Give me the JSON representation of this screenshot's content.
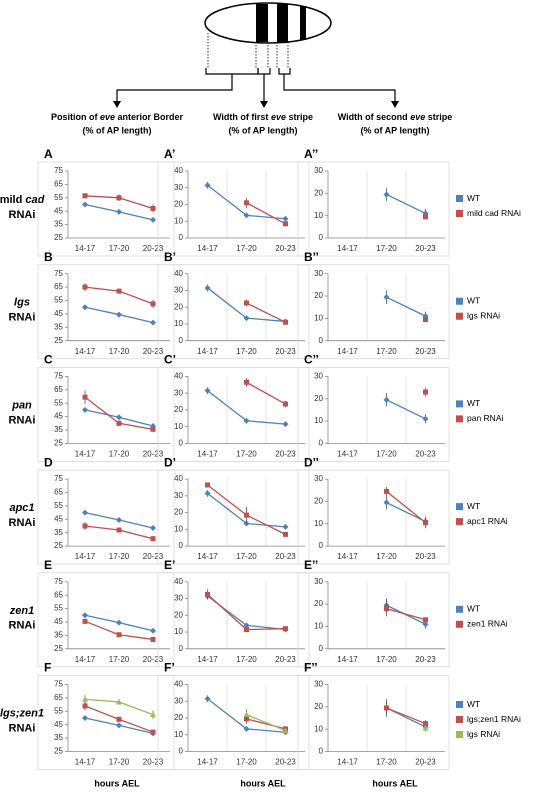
{
  "columns": [
    {
      "title_parts": [
        "Position of ",
        "eve",
        " anterior Border"
      ],
      "sub": "(% of AP length)",
      "x_label": "hours AEL"
    },
    {
      "title_parts": [
        "Width of first ",
        "eve",
        " stripe"
      ],
      "sub": "(% of AP length)",
      "x_label": "hours AEL"
    },
    {
      "title_parts": [
        "Width of second ",
        "eve",
        " stripe"
      ],
      "sub": "(% of AP length)",
      "x_label": "hours AEL"
    }
  ],
  "rows": [
    {
      "label_parts": [
        "mild ",
        "cad"
      ],
      "rnai": "RNAi",
      "legend": [
        {
          "name": "WT",
          "color": "#4f81bd"
        },
        {
          "name": "mild cad RNAi",
          "color": "#c0504d"
        }
      ]
    },
    {
      "label_parts": [
        "lgs"
      ],
      "rnai": "RNAi",
      "legend": [
        {
          "name": "WT",
          "color": "#4f81bd"
        },
        {
          "name": "lgs RNAi",
          "color": "#c0504d"
        }
      ]
    },
    {
      "label_parts": [
        "pan"
      ],
      "rnai": "RNAi",
      "legend": [
        {
          "name": "WT",
          "color": "#4f81bd"
        },
        {
          "name": "pan RNAi",
          "color": "#c0504d"
        }
      ]
    },
    {
      "label_parts": [
        "apc1"
      ],
      "rnai": "RNAi",
      "legend": [
        {
          "name": "WT",
          "color": "#4f81bd"
        },
        {
          "name": "apc1 RNAi",
          "color": "#c0504d"
        }
      ]
    },
    {
      "label_parts": [
        "zen1"
      ],
      "rnai": "RNAi",
      "legend": [
        {
          "name": "WT",
          "color": "#4f81bd"
        },
        {
          "name": "zen1 RNAi",
          "color": "#c0504d"
        }
      ]
    },
    {
      "label_parts": [
        "lgs;zen1"
      ],
      "rnai": "RNAi",
      "legend": [
        {
          "name": "WT",
          "color": "#4f81bd"
        },
        {
          "name": "lgs;zen1 RNAi",
          "color": "#c0504d"
        },
        {
          "name": "lgs RNAi",
          "color": "#9bbb59"
        }
      ]
    }
  ],
  "chart_data": [
    {
      "type": "line",
      "panel": "A",
      "categories": [
        "14-17",
        "17-20",
        "20-23"
      ],
      "ylim": [
        25,
        75
      ],
      "yticks": [
        25,
        35,
        45,
        55,
        65,
        75
      ],
      "grid": false,
      "series": [
        {
          "color": "#4f81bd",
          "marker": "diamond",
          "values": [
            50,
            44.5,
            38.5
          ],
          "errors": [
            1,
            1,
            1
          ]
        },
        {
          "color": "#c0504d",
          "marker": "square",
          "values": [
            56.5,
            55,
            47
          ],
          "errors": [
            1.5,
            2.5,
            3
          ]
        }
      ]
    },
    {
      "type": "line",
      "panel": "A’",
      "categories": [
        "14-17",
        "17-20",
        "20-23"
      ],
      "ylim": [
        0,
        40
      ],
      "yticks": [
        0,
        10,
        20,
        30,
        40
      ],
      "grid": true,
      "series": [
        {
          "color": "#4f81bd",
          "marker": "diamond",
          "values": [
            31.5,
            13.5,
            11.5
          ],
          "errors": [
            2,
            1,
            0.5
          ]
        },
        {
          "color": "#c0504d",
          "marker": "square",
          "values": [
            null,
            21,
            8.5
          ],
          "errors": [
            null,
            3,
            1
          ]
        }
      ]
    },
    {
      "type": "line",
      "panel": "A’’",
      "categories": [
        "14-17",
        "17-20",
        "20-23"
      ],
      "ylim": [
        0,
        30
      ],
      "yticks": [
        0,
        10,
        20,
        30
      ],
      "grid": true,
      "series": [
        {
          "color": "#4f81bd",
          "marker": "diamond",
          "values": [
            null,
            19.5,
            11
          ],
          "errors": [
            null,
            3,
            2
          ]
        },
        {
          "color": "#c0504d",
          "marker": "square",
          "values": [
            null,
            null,
            9.5
          ],
          "errors": [
            null,
            null,
            1
          ]
        }
      ]
    },
    {
      "type": "line",
      "panel": "B",
      "categories": [
        "14-17",
        "17-20",
        "20-23"
      ],
      "ylim": [
        25,
        75
      ],
      "yticks": [
        25,
        35,
        45,
        55,
        65,
        75
      ],
      "grid": false,
      "series": [
        {
          "color": "#4f81bd",
          "marker": "diamond",
          "values": [
            50,
            44.5,
            38.5
          ],
          "errors": [
            1,
            1,
            1
          ]
        },
        {
          "color": "#c0504d",
          "marker": "square",
          "values": [
            65,
            62,
            52.5
          ],
          "errors": [
            3,
            1.5,
            3
          ]
        }
      ]
    },
    {
      "type": "line",
      "panel": "B’",
      "categories": [
        "14-17",
        "17-20",
        "20-23"
      ],
      "ylim": [
        0,
        40
      ],
      "yticks": [
        0,
        10,
        20,
        30,
        40
      ],
      "grid": true,
      "series": [
        {
          "color": "#4f81bd",
          "marker": "diamond",
          "values": [
            31.5,
            13.5,
            11.5
          ],
          "errors": [
            2,
            1,
            0.5
          ]
        },
        {
          "color": "#c0504d",
          "marker": "square",
          "values": [
            null,
            22.5,
            11
          ],
          "errors": [
            null,
            2,
            1
          ]
        }
      ]
    },
    {
      "type": "line",
      "panel": "B’’",
      "categories": [
        "14-17",
        "17-20",
        "20-23"
      ],
      "ylim": [
        0,
        30
      ],
      "yticks": [
        0,
        10,
        20,
        30
      ],
      "grid": true,
      "series": [
        {
          "color": "#4f81bd",
          "marker": "diamond",
          "values": [
            null,
            19.5,
            11
          ],
          "errors": [
            null,
            3,
            2
          ]
        },
        {
          "color": "#c0504d",
          "marker": "square",
          "values": [
            null,
            null,
            9.5
          ],
          "errors": [
            null,
            null,
            1
          ]
        }
      ]
    },
    {
      "type": "line",
      "panel": "C",
      "categories": [
        "14-17",
        "17-20",
        "20-23"
      ],
      "ylim": [
        25,
        75
      ],
      "yticks": [
        25,
        35,
        45,
        55,
        65,
        75
      ],
      "grid": false,
      "series": [
        {
          "color": "#4f81bd",
          "marker": "diamond",
          "values": [
            50,
            44.5,
            38
          ],
          "errors": [
            1,
            1,
            1
          ]
        },
        {
          "color": "#c0504d",
          "marker": "square",
          "values": [
            59.5,
            40,
            35.5
          ],
          "errors": [
            5,
            2,
            1
          ]
        }
      ]
    },
    {
      "type": "line",
      "panel": "C’",
      "categories": [
        "14-17",
        "17-20",
        "20-23"
      ],
      "ylim": [
        0,
        40
      ],
      "yticks": [
        0,
        10,
        20,
        30,
        40
      ],
      "grid": true,
      "series": [
        {
          "color": "#4f81bd",
          "marker": "diamond",
          "values": [
            31.5,
            13.5,
            11.5
          ],
          "errors": [
            2,
            1,
            0.5
          ]
        },
        {
          "color": "#c0504d",
          "marker": "square",
          "values": [
            null,
            36.5,
            23.5
          ],
          "errors": [
            null,
            2.5,
            2
          ]
        }
      ]
    },
    {
      "type": "line",
      "panel": "C’’",
      "categories": [
        "14-17",
        "17-20",
        "20-23"
      ],
      "ylim": [
        0,
        30
      ],
      "yticks": [
        0,
        10,
        20,
        30
      ],
      "grid": true,
      "series": [
        {
          "color": "#4f81bd",
          "marker": "diamond",
          "values": [
            null,
            19.5,
            11
          ],
          "errors": [
            null,
            3,
            2
          ]
        },
        {
          "color": "#c0504d",
          "marker": "square",
          "values": [
            null,
            null,
            23
          ],
          "errors": [
            null,
            null,
            2
          ]
        }
      ]
    },
    {
      "type": "line",
      "panel": "D",
      "categories": [
        "14-17",
        "17-20",
        "20-23"
      ],
      "ylim": [
        25,
        75
      ],
      "yticks": [
        25,
        35,
        45,
        55,
        65,
        75
      ],
      "grid": false,
      "series": [
        {
          "color": "#4f81bd",
          "marker": "diamond",
          "values": [
            50,
            44.5,
            38.5
          ],
          "errors": [
            1,
            1,
            1
          ]
        },
        {
          "color": "#c0504d",
          "marker": "square",
          "values": [
            40,
            37,
            30.5
          ],
          "errors": [
            3,
            1,
            2
          ]
        }
      ]
    },
    {
      "type": "line",
      "panel": "D’",
      "categories": [
        "14-17",
        "17-20",
        "20-23"
      ],
      "ylim": [
        0,
        40
      ],
      "yticks": [
        0,
        10,
        20,
        30,
        40
      ],
      "grid": true,
      "series": [
        {
          "color": "#4f81bd",
          "marker": "diamond",
          "values": [
            31.5,
            13.5,
            11.5
          ],
          "errors": [
            2,
            1,
            0.5
          ]
        },
        {
          "color": "#c0504d",
          "marker": "square",
          "values": [
            36.5,
            18.5,
            7
          ],
          "errors": [
            1.5,
            5,
            1
          ]
        }
      ]
    },
    {
      "type": "line",
      "panel": "D’’",
      "categories": [
        "14-17",
        "17-20",
        "20-23"
      ],
      "ylim": [
        0,
        30
      ],
      "yticks": [
        0,
        10,
        20,
        30
      ],
      "grid": true,
      "series": [
        {
          "color": "#4f81bd",
          "marker": "diamond",
          "values": [
            null,
            19.5,
            11
          ],
          "errors": [
            null,
            3,
            2
          ]
        },
        {
          "color": "#c0504d",
          "marker": "square",
          "values": [
            null,
            24.5,
            10.5
          ],
          "errors": [
            null,
            2,
            2.5
          ]
        }
      ]
    },
    {
      "type": "line",
      "panel": "E",
      "categories": [
        "14-17",
        "17-20",
        "20-23"
      ],
      "ylim": [
        25,
        75
      ],
      "yticks": [
        25,
        35,
        45,
        55,
        65,
        75
      ],
      "grid": false,
      "series": [
        {
          "color": "#4f81bd",
          "marker": "diamond",
          "values": [
            50,
            44.5,
            38.5
          ],
          "errors": [
            1,
            1,
            1
          ]
        },
        {
          "color": "#c0504d",
          "marker": "square",
          "values": [
            45.5,
            35.5,
            32
          ],
          "errors": [
            2,
            1,
            1
          ]
        }
      ]
    },
    {
      "type": "line",
      "panel": "E’",
      "categories": [
        "14-17",
        "17-20",
        "20-23"
      ],
      "ylim": [
        0,
        40
      ],
      "yticks": [
        0,
        10,
        20,
        30,
        40
      ],
      "grid": true,
      "series": [
        {
          "color": "#4f81bd",
          "marker": "diamond",
          "values": [
            31.5,
            14,
            11.5
          ],
          "errors": [
            2,
            1,
            0.5
          ]
        },
        {
          "color": "#c0504d",
          "marker": "square",
          "values": [
            32.5,
            11.5,
            12
          ],
          "errors": [
            3,
            1,
            1
          ]
        }
      ]
    },
    {
      "type": "line",
      "panel": "E’’",
      "categories": [
        "14-17",
        "17-20",
        "20-23"
      ],
      "ylim": [
        0,
        30
      ],
      "yticks": [
        0,
        10,
        20,
        30
      ],
      "grid": true,
      "series": [
        {
          "color": "#4f81bd",
          "marker": "diamond",
          "values": [
            null,
            19.5,
            11
          ],
          "errors": [
            null,
            3,
            2
          ]
        },
        {
          "color": "#c0504d",
          "marker": "square",
          "values": [
            null,
            18,
            13
          ],
          "errors": [
            null,
            3.5,
            1
          ]
        }
      ]
    },
    {
      "type": "line",
      "panel": "F",
      "categories": [
        "14-17",
        "17-20",
        "20-23"
      ],
      "ylim": [
        25,
        75
      ],
      "yticks": [
        25,
        35,
        45,
        55,
        65,
        75
      ],
      "grid": false,
      "series": [
        {
          "color": "#4f81bd",
          "marker": "diamond",
          "values": [
            50,
            44.5,
            38.5
          ],
          "errors": [
            1,
            1,
            1
          ]
        },
        {
          "color": "#c0504d",
          "marker": "square",
          "values": [
            59,
            49,
            39.5
          ],
          "errors": [
            3,
            2,
            1
          ]
        },
        {
          "color": "#9bbb59",
          "marker": "triangle",
          "values": [
            64,
            62,
            52.5
          ],
          "errors": [
            3,
            2,
            3
          ]
        }
      ]
    },
    {
      "type": "line",
      "panel": "F’",
      "categories": [
        "14-17",
        "17-20",
        "20-23"
      ],
      "ylim": [
        0,
        40
      ],
      "yticks": [
        0,
        10,
        20,
        30,
        40
      ],
      "grid": true,
      "series": [
        {
          "color": "#4f81bd",
          "marker": "diamond",
          "values": [
            31.5,
            13.5,
            11.5
          ],
          "errors": [
            2,
            1,
            0.5
          ]
        },
        {
          "color": "#c0504d",
          "marker": "square",
          "values": [
            null,
            19.5,
            13.5
          ],
          "errors": [
            null,
            3,
            1
          ]
        },
        {
          "color": "#9bbb59",
          "marker": "triangle",
          "values": [
            null,
            22,
            12.5
          ],
          "errors": [
            null,
            3,
            1
          ]
        }
      ]
    },
    {
      "type": "line",
      "panel": "F’’",
      "categories": [
        "14-17",
        "17-20",
        "20-23"
      ],
      "ylim": [
        0,
        30
      ],
      "yticks": [
        0,
        10,
        20,
        30
      ],
      "grid": true,
      "series": [
        {
          "color": "#4f81bd",
          "marker": "diamond",
          "values": [
            null,
            19.5,
            11
          ],
          "errors": [
            null,
            3,
            2
          ]
        },
        {
          "color": "#c0504d",
          "marker": "square",
          "values": [
            null,
            19.5,
            12.5
          ],
          "errors": [
            null,
            4,
            1.5
          ]
        },
        {
          "color": "#9bbb59",
          "marker": "triangle",
          "values": [
            null,
            null,
            10.5
          ],
          "errors": [
            null,
            null,
            1
          ]
        }
      ]
    }
  ]
}
